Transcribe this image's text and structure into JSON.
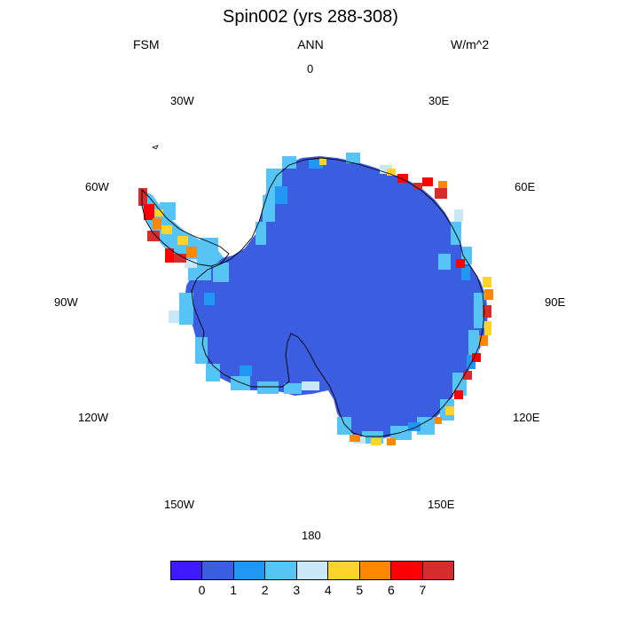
{
  "title": "Spin002 (yrs 288-308)",
  "subtitle": {
    "left": "FSM",
    "center": "ANN",
    "right": "W/m^2"
  },
  "longitude_labels": [
    "0",
    "30E",
    "60E",
    "90E",
    "120E",
    "150E",
    "180",
    "150W",
    "120W",
    "90W",
    "60W",
    "30W"
  ],
  "map": {
    "projection": "south-polar-stereographic",
    "region": "Antarctica",
    "interior_value_color": "#3b5ee0",
    "coastline_color": "#000000"
  },
  "colorbar": {
    "colors": [
      "#3f1aff",
      "#3b5ee0",
      "#2196f3",
      "#56c4f5",
      "#c8e8f8",
      "#ffd42a",
      "#ff8800",
      "#ff0000",
      "#d62c2c"
    ],
    "labels": [
      "0",
      "1",
      "2",
      "3",
      "4",
      "5",
      "6",
      "7"
    ]
  }
}
